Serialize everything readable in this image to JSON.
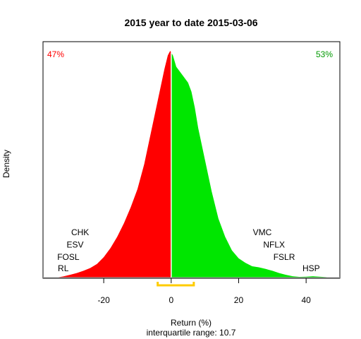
{
  "chart_data": {
    "type": "area",
    "title": "2015  year to date 2015-03-06",
    "xlabel": "Return (%)",
    "ylabel": "Density",
    "subtitle": "interquartile range: 10.7",
    "xlim": [
      -38,
      50
    ],
    "ylim": [
      0,
      1.06
    ],
    "x_ticks": [
      -20,
      0,
      20,
      40
    ],
    "x_tick_labels": [
      "-20",
      "0",
      "20",
      "40"
    ],
    "grid": false,
    "split_at": 0,
    "left_share_label": "47%",
    "right_share_label": "53%",
    "colors": {
      "negative": "#ff0000",
      "positive": "#00e600",
      "iqr": "#ffcc00",
      "baseline": "#bebebe",
      "left_label": "#ff0000",
      "right_label": "#009900",
      "divider": "#ffffff"
    },
    "iqr": [
      -4,
      6.7
    ],
    "density": [
      {
        "x": -34,
        "y": 0.0
      },
      {
        "x": -32,
        "y": 0.005
      },
      {
        "x": -30,
        "y": 0.012
      },
      {
        "x": -28,
        "y": 0.02
      },
      {
        "x": -26,
        "y": 0.03
      },
      {
        "x": -24,
        "y": 0.042
      },
      {
        "x": -22,
        "y": 0.06
      },
      {
        "x": -20,
        "y": 0.09
      },
      {
        "x": -18,
        "y": 0.13
      },
      {
        "x": -16,
        "y": 0.18
      },
      {
        "x": -14,
        "y": 0.24
      },
      {
        "x": -12,
        "y": 0.31
      },
      {
        "x": -10,
        "y": 0.39
      },
      {
        "x": -8,
        "y": 0.5
      },
      {
        "x": -6,
        "y": 0.64
      },
      {
        "x": -4,
        "y": 0.78
      },
      {
        "x": -2,
        "y": 0.92
      },
      {
        "x": -1,
        "y": 0.98
      },
      {
        "x": -0.3,
        "y": 1.0
      },
      {
        "x": 0.5,
        "y": 0.98
      },
      {
        "x": 1.5,
        "y": 0.93
      },
      {
        "x": 3,
        "y": 0.9
      },
      {
        "x": 5,
        "y": 0.86
      },
      {
        "x": 6,
        "y": 0.82
      },
      {
        "x": 7,
        "y": 0.75
      },
      {
        "x": 8,
        "y": 0.66
      },
      {
        "x": 10,
        "y": 0.52
      },
      {
        "x": 12,
        "y": 0.38
      },
      {
        "x": 14,
        "y": 0.26
      },
      {
        "x": 16,
        "y": 0.18
      },
      {
        "x": 18,
        "y": 0.12
      },
      {
        "x": 20,
        "y": 0.085
      },
      {
        "x": 22,
        "y": 0.065
      },
      {
        "x": 24,
        "y": 0.05
      },
      {
        "x": 26,
        "y": 0.045
      },
      {
        "x": 28,
        "y": 0.038
      },
      {
        "x": 30,
        "y": 0.03
      },
      {
        "x": 32,
        "y": 0.02
      },
      {
        "x": 34,
        "y": 0.012
      },
      {
        "x": 36,
        "y": 0.006
      },
      {
        "x": 38,
        "y": 0.003
      },
      {
        "x": 40,
        "y": 0.004
      },
      {
        "x": 42,
        "y": 0.006
      },
      {
        "x": 44,
        "y": 0.004
      },
      {
        "x": 46,
        "y": 0.002
      },
      {
        "x": 47,
        "y": 0.0
      }
    ],
    "annotations": [
      {
        "label": "CHK",
        "x": -27,
        "y": 0.2
      },
      {
        "label": "ESV",
        "x": -28.5,
        "y": 0.145
      },
      {
        "label": "FOSL",
        "x": -30.5,
        "y": 0.09
      },
      {
        "label": "RL",
        "x": -32,
        "y": 0.04
      },
      {
        "label": "VMC",
        "x": 27,
        "y": 0.2
      },
      {
        "label": "NFLX",
        "x": 30.5,
        "y": 0.145
      },
      {
        "label": "FSLR",
        "x": 33.5,
        "y": 0.09
      },
      {
        "label": "HSP",
        "x": 41.5,
        "y": 0.04
      }
    ]
  }
}
